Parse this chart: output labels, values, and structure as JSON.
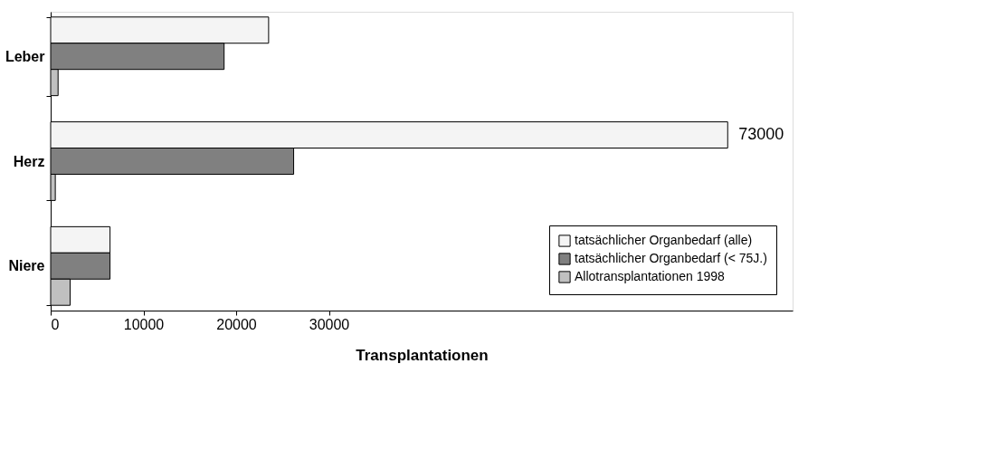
{
  "chart_data": {
    "type": "bar",
    "orientation": "horizontal",
    "xlabel": "Transplantationen",
    "categories": [
      "Leber",
      "Herz",
      "Niere"
    ],
    "series": [
      {
        "name": "tatsächlicher Organbedarf (alle)",
        "color": "#f4f4f4",
        "values": [
          23500,
          73000,
          6400
        ],
        "value_labels": [
          null,
          "73000",
          null
        ]
      },
      {
        "name": "tatsächlicher Organbedarf (< 75J.)",
        "color": "#808080",
        "values": [
          18700,
          26200,
          6400
        ]
      },
      {
        "name": "Allotransplantationen 1998",
        "color": "#c0c0c0",
        "values": [
          800,
          500,
          2100
        ]
      }
    ],
    "xlim": [
      0,
      80000
    ],
    "xticks": [
      0,
      10000,
      20000,
      30000
    ],
    "grid": false,
    "legend": "bottom right"
  }
}
